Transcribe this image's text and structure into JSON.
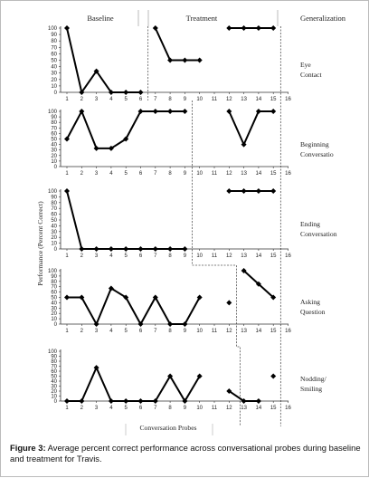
{
  "phases": [
    "Baseline",
    "Treatment",
    "Generalization"
  ],
  "caption": {
    "prefix": "Figure 3:",
    "text": " Average percent correct performance across conversational probes during baseline and treatment for Travis."
  },
  "chart_data": {
    "type": "line",
    "ylabel": "Performance (Percent Correct)",
    "xlabel": "Conversation Probes",
    "xticks": [
      1,
      2,
      3,
      4,
      5,
      6,
      7,
      8,
      9,
      10,
      11,
      12,
      13,
      14,
      15,
      16
    ],
    "yticks": [
      0,
      10,
      20,
      30,
      40,
      50,
      60,
      70,
      80,
      90,
      100
    ],
    "ylim": [
      0,
      100
    ],
    "panels": [
      {
        "label": [
          "Eye",
          "Contact"
        ],
        "segments": [
          {
            "x": [
              1,
              2,
              3,
              4,
              5,
              6
            ],
            "y": [
              100,
              0,
              33,
              0,
              0,
              0
            ]
          },
          {
            "x": [
              7,
              8,
              9,
              10
            ],
            "y": [
              100,
              50,
              50,
              50
            ]
          },
          {
            "x": [
              12,
              13,
              14,
              15
            ],
            "y": [
              100,
              100,
              100,
              100
            ]
          }
        ]
      },
      {
        "label": [
          "Beginning",
          "Conversatio"
        ],
        "segments": [
          {
            "x": [
              1,
              2,
              3,
              4,
              5,
              6,
              7,
              8,
              9
            ],
            "y": [
              50,
              100,
              33,
              33,
              50,
              100,
              100,
              100,
              100
            ]
          },
          {
            "x": [
              12,
              13,
              14,
              15
            ],
            "y": [
              100,
              40,
              100,
              100
            ]
          }
        ]
      },
      {
        "label": [
          "Ending",
          "Conversation"
        ],
        "segments": [
          {
            "x": [
              1,
              2,
              3,
              4,
              5,
              6,
              7,
              8,
              9
            ],
            "y": [
              100,
              0,
              0,
              0,
              0,
              0,
              0,
              0,
              0
            ]
          },
          {
            "x": [
              12,
              13,
              14,
              15
            ],
            "y": [
              100,
              100,
              100,
              100
            ]
          }
        ]
      },
      {
        "label": [
          "Asking",
          "Question"
        ],
        "segments": [
          {
            "x": [
              1,
              2,
              3,
              4,
              5,
              6,
              7,
              8,
              9,
              10
            ],
            "y": [
              50,
              50,
              0,
              67,
              50,
              0,
              50,
              0,
              0,
              50
            ]
          },
          {
            "x": [
              12
            ],
            "y": [
              40
            ]
          },
          {
            "x": [
              13,
              14,
              15
            ],
            "y": [
              100,
              75,
              50
            ]
          }
        ]
      },
      {
        "label": [
          "Nodding/",
          "Smiling"
        ],
        "segments": [
          {
            "x": [
              1,
              2,
              3,
              4,
              5,
              6,
              7,
              8,
              9,
              10
            ],
            "y": [
              0,
              0,
              67,
              0,
              0,
              0,
              0,
              50,
              0,
              50
            ]
          },
          {
            "x": [
              12,
              13,
              14
            ],
            "y": [
              20,
              0,
              0
            ]
          },
          {
            "x": [
              15
            ],
            "y": [
              50
            ]
          }
        ]
      }
    ]
  }
}
